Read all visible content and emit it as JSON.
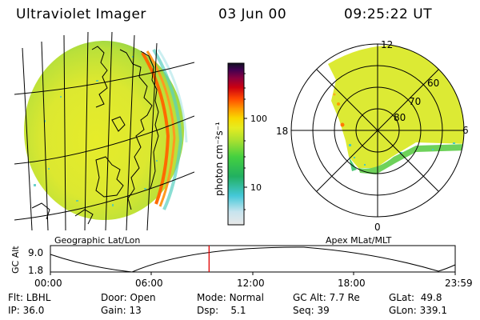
{
  "header": {
    "instrument": "Ultraviolet Imager",
    "date": "03 Jun 00",
    "time": "09:25:22 UT"
  },
  "colorbar": {
    "unit_label": "photon cm⁻²s⁻¹",
    "ticks": [
      "100",
      "10"
    ]
  },
  "polar_plot": {
    "mlt_labels": {
      "top": "12",
      "left": "18",
      "right": "6",
      "bottom": "0"
    },
    "mlat_labels": [
      "60",
      "70",
      "80"
    ]
  },
  "panels": {
    "left_caption": "Geographic Lat/Lon",
    "right_caption": "Apex MLat/MLT"
  },
  "altitude_plot": {
    "axis_title": "GC Alt",
    "y_ticks": [
      "9.0",
      "1.8"
    ],
    "x_ticks": [
      "00:00",
      "06:00",
      "12:00",
      "18:00",
      "23:59"
    ],
    "current_time_fraction": 0.392
  },
  "info": {
    "flt_label": "Flt:",
    "flt_value": "LBHL",
    "ip_label": "IP:",
    "ip_value": "36.0",
    "door_label": "Door:",
    "door_value": "Open",
    "gain_label": "Gain:",
    "gain_value": "13",
    "mode_label": "Mode:",
    "mode_value": "Normal",
    "dsp_label": "Dsp:",
    "dsp_value": "5.1",
    "gcalt_label": "GC Alt:",
    "gcalt_value": "7.7 Re",
    "seq_label": "Seq:",
    "seq_value": "39",
    "glat_label": "GLat:",
    "glat_value": "49.8",
    "glon_label": "GLon:",
    "glon_value": "339.1"
  },
  "colors": {
    "marker": "#e00000",
    "aurora": "#ff5a00"
  }
}
